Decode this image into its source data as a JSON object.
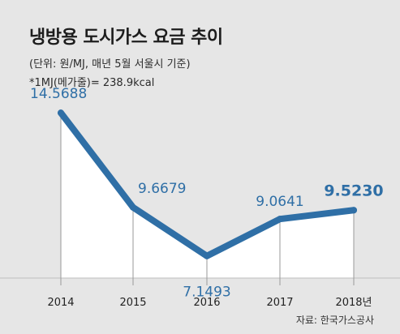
{
  "header": {
    "title": "냉방용 도시가스 요금 추이",
    "unit_note": "(단위: 원/MJ, 매년 5월 서울시 기준)",
    "conversion_note": "*1MJ(메가줄)= 238.9kcal"
  },
  "source": "자료: 한국가스공사",
  "colors": {
    "line": "#2f6fa6",
    "area": "#ffffff",
    "background": "#e6e6e6",
    "label": "#2f6fa6",
    "axis_text": "#222222"
  },
  "chart_data": {
    "type": "area",
    "categories": [
      "2014",
      "2015",
      "2016",
      "2017",
      "2018년"
    ],
    "values": [
      14.5688,
      9.6679,
      7.1493,
      9.0641,
      9.523
    ],
    "data_labels": [
      "14.5688",
      "9.6679",
      "7.1493",
      "9.0641",
      "9.5230"
    ],
    "title": "냉방용 도시가스 요금 추이",
    "xlabel": "",
    "ylabel": "",
    "ylim": [
      5.5,
      15.5
    ],
    "grid": false,
    "legend": "none"
  }
}
